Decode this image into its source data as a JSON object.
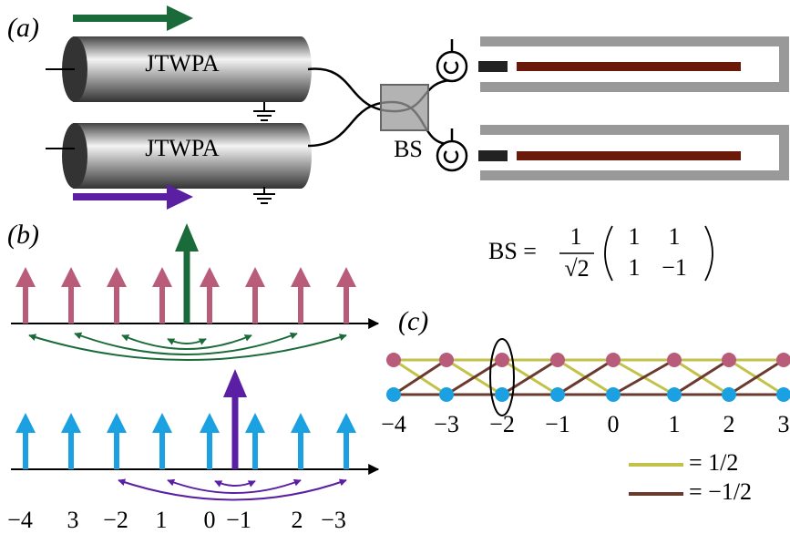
{
  "panel_a": {
    "label": "(a)",
    "amplifiers": [
      "JTWPA",
      "JTWPA"
    ],
    "splitter": "BS"
  },
  "panel_b": {
    "label": "(b)",
    "mode_labels": [
      "−4",
      "3",
      "−2",
      "1",
      "0",
      "−1",
      "2",
      "−3"
    ]
  },
  "matrix": {
    "lhs": "BS =",
    "numerator": "1",
    "denominator": "√2",
    "rows": [
      [
        "1",
        "1"
      ],
      [
        "1",
        "−1"
      ]
    ]
  },
  "panel_c": {
    "label": "(c)",
    "site_labels": [
      "−4",
      "−3",
      "−2",
      "−1",
      "0",
      "1",
      "2",
      "3"
    ],
    "legend": [
      "= 1/2",
      "= −1/2"
    ]
  }
}
